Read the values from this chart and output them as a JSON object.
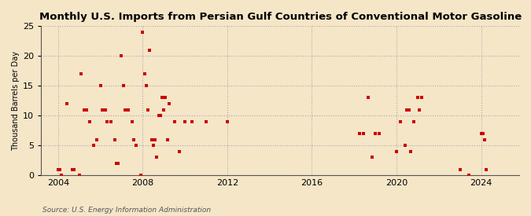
{
  "title": "Monthly U.S. Imports from Persian Gulf Countries of Conventional Motor Gasoline",
  "ylabel": "Thousand Barrels per Day",
  "source": "Source: U.S. Energy Information Administration",
  "background_color": "#f5e6c8",
  "point_color": "#cc0000",
  "ylim": [
    0,
    25
  ],
  "yticks": [
    0,
    5,
    10,
    15,
    20,
    25
  ],
  "xlim_start": 2003.2,
  "xlim_end": 2025.8,
  "xticks": [
    2004,
    2008,
    2012,
    2016,
    2020,
    2024
  ],
  "data_points": [
    [
      2004.0,
      1.0
    ],
    [
      2004.08,
      1.0
    ],
    [
      2004.17,
      0.0
    ],
    [
      2004.42,
      12.0
    ],
    [
      2004.67,
      1.0
    ],
    [
      2004.75,
      1.0
    ],
    [
      2005.0,
      0.0
    ],
    [
      2005.08,
      17.0
    ],
    [
      2005.25,
      11.0
    ],
    [
      2005.33,
      11.0
    ],
    [
      2005.5,
      9.0
    ],
    [
      2005.67,
      5.0
    ],
    [
      2005.83,
      6.0
    ],
    [
      2006.0,
      15.0
    ],
    [
      2006.08,
      11.0
    ],
    [
      2006.25,
      11.0
    ],
    [
      2006.33,
      9.0
    ],
    [
      2006.5,
      9.0
    ],
    [
      2006.67,
      6.0
    ],
    [
      2006.75,
      2.0
    ],
    [
      2006.83,
      2.0
    ],
    [
      2007.0,
      20.0
    ],
    [
      2007.08,
      15.0
    ],
    [
      2007.17,
      11.0
    ],
    [
      2007.33,
      11.0
    ],
    [
      2007.5,
      9.0
    ],
    [
      2007.58,
      6.0
    ],
    [
      2007.67,
      5.0
    ],
    [
      2007.92,
      0.0
    ],
    [
      2008.0,
      24.0
    ],
    [
      2008.08,
      17.0
    ],
    [
      2008.17,
      15.0
    ],
    [
      2008.25,
      11.0
    ],
    [
      2008.33,
      21.0
    ],
    [
      2008.42,
      6.0
    ],
    [
      2008.5,
      5.0
    ],
    [
      2008.58,
      6.0
    ],
    [
      2008.67,
      3.0
    ],
    [
      2008.75,
      10.0
    ],
    [
      2008.83,
      10.0
    ],
    [
      2008.92,
      13.0
    ],
    [
      2009.0,
      11.0
    ],
    [
      2009.08,
      13.0
    ],
    [
      2009.17,
      6.0
    ],
    [
      2009.25,
      12.0
    ],
    [
      2009.5,
      9.0
    ],
    [
      2009.75,
      4.0
    ],
    [
      2010.0,
      9.0
    ],
    [
      2010.33,
      9.0
    ],
    [
      2011.0,
      9.0
    ],
    [
      2012.0,
      9.0
    ],
    [
      2018.25,
      7.0
    ],
    [
      2018.42,
      7.0
    ],
    [
      2018.67,
      13.0
    ],
    [
      2018.83,
      3.0
    ],
    [
      2019.0,
      7.0
    ],
    [
      2019.17,
      7.0
    ],
    [
      2020.0,
      4.0
    ],
    [
      2020.17,
      9.0
    ],
    [
      2020.42,
      5.0
    ],
    [
      2020.5,
      11.0
    ],
    [
      2020.58,
      11.0
    ],
    [
      2020.67,
      4.0
    ],
    [
      2020.83,
      9.0
    ],
    [
      2021.0,
      13.0
    ],
    [
      2021.08,
      11.0
    ],
    [
      2021.17,
      13.0
    ],
    [
      2023.0,
      1.0
    ],
    [
      2023.42,
      0.0
    ],
    [
      2024.0,
      7.0
    ],
    [
      2024.08,
      7.0
    ],
    [
      2024.17,
      6.0
    ],
    [
      2024.25,
      1.0
    ]
  ]
}
